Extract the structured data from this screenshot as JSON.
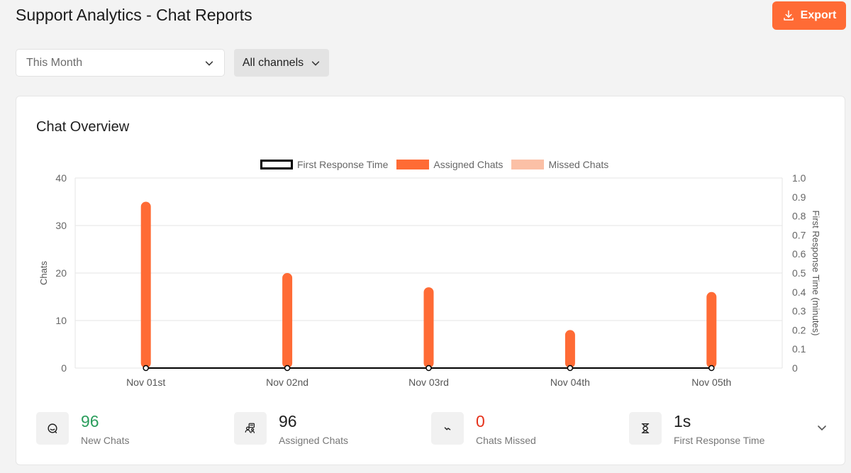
{
  "page": {
    "title": "Support Analytics - Chat Reports"
  },
  "toolbar": {
    "export_label": "Export",
    "export_icon": "download-icon"
  },
  "filters": {
    "date_range": "This Month",
    "channel": "All channels"
  },
  "card": {
    "title": "Chat Overview"
  },
  "colors": {
    "accent": "#ff6b35",
    "missed": "#fbc0a6",
    "positive": "#2a9d5c",
    "negative": "#e5321b"
  },
  "chart_data": {
    "type": "bar",
    "categories": [
      "Nov 01st",
      "Nov 02nd",
      "Nov 03rd",
      "Nov 04th",
      "Nov 05th"
    ],
    "series": [
      {
        "name": "First Response Time",
        "type": "line",
        "axis": "right",
        "values": [
          0,
          0,
          0,
          0,
          0
        ]
      },
      {
        "name": "Assigned Chats",
        "type": "bar",
        "axis": "left",
        "values": [
          35,
          20,
          17,
          8,
          16
        ]
      },
      {
        "name": "Missed Chats",
        "type": "bar",
        "axis": "left",
        "values": [
          0,
          0,
          0,
          0,
          0
        ]
      }
    ],
    "ylabel": "Chats",
    "ylim": [
      0,
      40
    ],
    "yticks": [
      "0",
      "10",
      "20",
      "30",
      "40"
    ],
    "y2label": "First Response Time  (minutes)",
    "y2lim": [
      0,
      1
    ],
    "y2ticks": [
      "0",
      "0.1",
      "0.2",
      "0.3",
      "0.4",
      "0.5",
      "0.6",
      "0.7",
      "0.8",
      "0.9",
      "1.0"
    ],
    "legend": "top-center",
    "grid": true
  },
  "stats": [
    {
      "value": "96",
      "label": "New Chats",
      "icon": "chat-bubble-icon",
      "color": "#2a9d5c"
    },
    {
      "value": "96",
      "label": "Assigned Chats",
      "icon": "assigned-agents-icon",
      "color": "#1f1f1f"
    },
    {
      "value": "0",
      "label": "Chats Missed",
      "icon": "missed-chat-icon",
      "color": "#e5321b"
    },
    {
      "value": "1s",
      "label": "First Response Time",
      "icon": "hourglass-icon",
      "color": "#1f1f1f"
    }
  ]
}
